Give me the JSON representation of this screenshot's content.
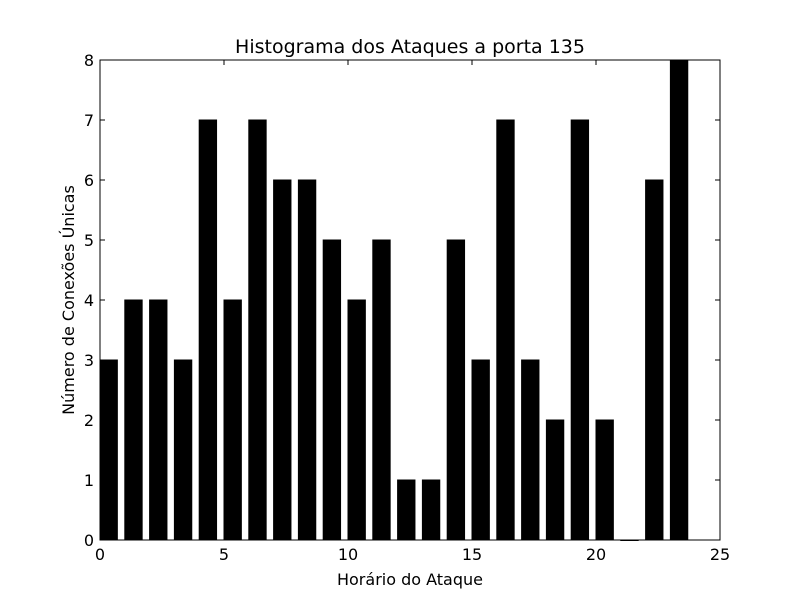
{
  "chart_data": {
    "type": "bar",
    "title": "Histograma dos Ataques a porta 135",
    "xlabel": "Horário do Ataque",
    "ylabel": "Número de Conexões Únicas",
    "x": [
      0,
      1,
      2,
      3,
      4,
      5,
      6,
      7,
      8,
      9,
      10,
      11,
      12,
      13,
      14,
      15,
      16,
      17,
      18,
      19,
      20,
      21,
      22,
      23
    ],
    "values": [
      3,
      4,
      4,
      3,
      7,
      4,
      7,
      6,
      6,
      5,
      4,
      5,
      1,
      1,
      5,
      3,
      7,
      3,
      2,
      7,
      2,
      0,
      6,
      8
    ],
    "bar_width": 0.7,
    "xlim": [
      0,
      25
    ],
    "ylim": [
      0,
      8
    ],
    "xticks": [
      "0",
      "5",
      "10",
      "15",
      "20",
      "25"
    ],
    "yticks": [
      "0",
      "1",
      "2",
      "3",
      "4",
      "5",
      "6",
      "7",
      "8"
    ],
    "grid": false,
    "bar_color": "#000000"
  }
}
